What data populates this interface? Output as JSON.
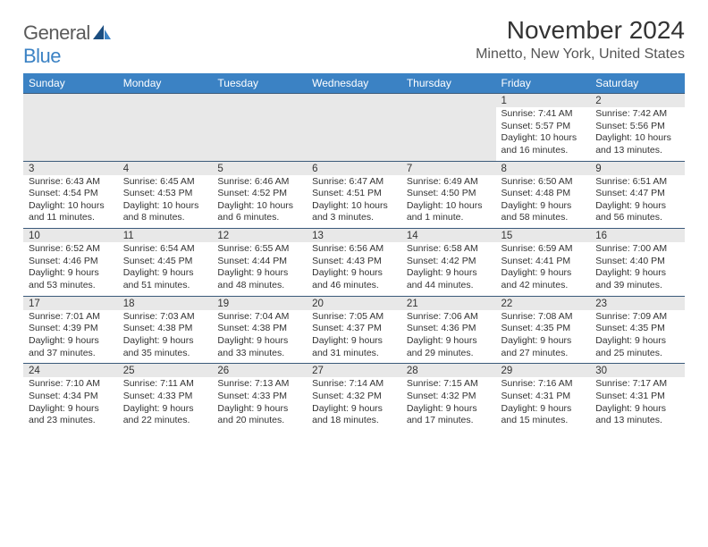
{
  "logo": {
    "line1": "General",
    "line2": "Blue"
  },
  "title": "November 2024",
  "location": "Minetto, New York, United States",
  "colors": {
    "header_bg": "#3b82c4",
    "header_text": "#ffffff",
    "date_bg": "#e8e8e8",
    "text": "#333333",
    "rule": "#3b5a7a",
    "logo_gray": "#5a5a5a",
    "logo_blue": "#3b82c4"
  },
  "dayNames": [
    "Sunday",
    "Monday",
    "Tuesday",
    "Wednesday",
    "Thursday",
    "Friday",
    "Saturday"
  ],
  "weeks": [
    [
      null,
      null,
      null,
      null,
      null,
      {
        "d": "1",
        "sr": "Sunrise: 7:41 AM",
        "ss": "Sunset: 5:57 PM",
        "dl1": "Daylight: 10 hours",
        "dl2": "and 16 minutes."
      },
      {
        "d": "2",
        "sr": "Sunrise: 7:42 AM",
        "ss": "Sunset: 5:56 PM",
        "dl1": "Daylight: 10 hours",
        "dl2": "and 13 minutes."
      }
    ],
    [
      {
        "d": "3",
        "sr": "Sunrise: 6:43 AM",
        "ss": "Sunset: 4:54 PM",
        "dl1": "Daylight: 10 hours",
        "dl2": "and 11 minutes."
      },
      {
        "d": "4",
        "sr": "Sunrise: 6:45 AM",
        "ss": "Sunset: 4:53 PM",
        "dl1": "Daylight: 10 hours",
        "dl2": "and 8 minutes."
      },
      {
        "d": "5",
        "sr": "Sunrise: 6:46 AM",
        "ss": "Sunset: 4:52 PM",
        "dl1": "Daylight: 10 hours",
        "dl2": "and 6 minutes."
      },
      {
        "d": "6",
        "sr": "Sunrise: 6:47 AM",
        "ss": "Sunset: 4:51 PM",
        "dl1": "Daylight: 10 hours",
        "dl2": "and 3 minutes."
      },
      {
        "d": "7",
        "sr": "Sunrise: 6:49 AM",
        "ss": "Sunset: 4:50 PM",
        "dl1": "Daylight: 10 hours",
        "dl2": "and 1 minute."
      },
      {
        "d": "8",
        "sr": "Sunrise: 6:50 AM",
        "ss": "Sunset: 4:48 PM",
        "dl1": "Daylight: 9 hours",
        "dl2": "and 58 minutes."
      },
      {
        "d": "9",
        "sr": "Sunrise: 6:51 AM",
        "ss": "Sunset: 4:47 PM",
        "dl1": "Daylight: 9 hours",
        "dl2": "and 56 minutes."
      }
    ],
    [
      {
        "d": "10",
        "sr": "Sunrise: 6:52 AM",
        "ss": "Sunset: 4:46 PM",
        "dl1": "Daylight: 9 hours",
        "dl2": "and 53 minutes."
      },
      {
        "d": "11",
        "sr": "Sunrise: 6:54 AM",
        "ss": "Sunset: 4:45 PM",
        "dl1": "Daylight: 9 hours",
        "dl2": "and 51 minutes."
      },
      {
        "d": "12",
        "sr": "Sunrise: 6:55 AM",
        "ss": "Sunset: 4:44 PM",
        "dl1": "Daylight: 9 hours",
        "dl2": "and 48 minutes."
      },
      {
        "d": "13",
        "sr": "Sunrise: 6:56 AM",
        "ss": "Sunset: 4:43 PM",
        "dl1": "Daylight: 9 hours",
        "dl2": "and 46 minutes."
      },
      {
        "d": "14",
        "sr": "Sunrise: 6:58 AM",
        "ss": "Sunset: 4:42 PM",
        "dl1": "Daylight: 9 hours",
        "dl2": "and 44 minutes."
      },
      {
        "d": "15",
        "sr": "Sunrise: 6:59 AM",
        "ss": "Sunset: 4:41 PM",
        "dl1": "Daylight: 9 hours",
        "dl2": "and 42 minutes."
      },
      {
        "d": "16",
        "sr": "Sunrise: 7:00 AM",
        "ss": "Sunset: 4:40 PM",
        "dl1": "Daylight: 9 hours",
        "dl2": "and 39 minutes."
      }
    ],
    [
      {
        "d": "17",
        "sr": "Sunrise: 7:01 AM",
        "ss": "Sunset: 4:39 PM",
        "dl1": "Daylight: 9 hours",
        "dl2": "and 37 minutes."
      },
      {
        "d": "18",
        "sr": "Sunrise: 7:03 AM",
        "ss": "Sunset: 4:38 PM",
        "dl1": "Daylight: 9 hours",
        "dl2": "and 35 minutes."
      },
      {
        "d": "19",
        "sr": "Sunrise: 7:04 AM",
        "ss": "Sunset: 4:38 PM",
        "dl1": "Daylight: 9 hours",
        "dl2": "and 33 minutes."
      },
      {
        "d": "20",
        "sr": "Sunrise: 7:05 AM",
        "ss": "Sunset: 4:37 PM",
        "dl1": "Daylight: 9 hours",
        "dl2": "and 31 minutes."
      },
      {
        "d": "21",
        "sr": "Sunrise: 7:06 AM",
        "ss": "Sunset: 4:36 PM",
        "dl1": "Daylight: 9 hours",
        "dl2": "and 29 minutes."
      },
      {
        "d": "22",
        "sr": "Sunrise: 7:08 AM",
        "ss": "Sunset: 4:35 PM",
        "dl1": "Daylight: 9 hours",
        "dl2": "and 27 minutes."
      },
      {
        "d": "23",
        "sr": "Sunrise: 7:09 AM",
        "ss": "Sunset: 4:35 PM",
        "dl1": "Daylight: 9 hours",
        "dl2": "and 25 minutes."
      }
    ],
    [
      {
        "d": "24",
        "sr": "Sunrise: 7:10 AM",
        "ss": "Sunset: 4:34 PM",
        "dl1": "Daylight: 9 hours",
        "dl2": "and 23 minutes."
      },
      {
        "d": "25",
        "sr": "Sunrise: 7:11 AM",
        "ss": "Sunset: 4:33 PM",
        "dl1": "Daylight: 9 hours",
        "dl2": "and 22 minutes."
      },
      {
        "d": "26",
        "sr": "Sunrise: 7:13 AM",
        "ss": "Sunset: 4:33 PM",
        "dl1": "Daylight: 9 hours",
        "dl2": "and 20 minutes."
      },
      {
        "d": "27",
        "sr": "Sunrise: 7:14 AM",
        "ss": "Sunset: 4:32 PM",
        "dl1": "Daylight: 9 hours",
        "dl2": "and 18 minutes."
      },
      {
        "d": "28",
        "sr": "Sunrise: 7:15 AM",
        "ss": "Sunset: 4:32 PM",
        "dl1": "Daylight: 9 hours",
        "dl2": "and 17 minutes."
      },
      {
        "d": "29",
        "sr": "Sunrise: 7:16 AM",
        "ss": "Sunset: 4:31 PM",
        "dl1": "Daylight: 9 hours",
        "dl2": "and 15 minutes."
      },
      {
        "d": "30",
        "sr": "Sunrise: 7:17 AM",
        "ss": "Sunset: 4:31 PM",
        "dl1": "Daylight: 9 hours",
        "dl2": "and 13 minutes."
      }
    ]
  ]
}
